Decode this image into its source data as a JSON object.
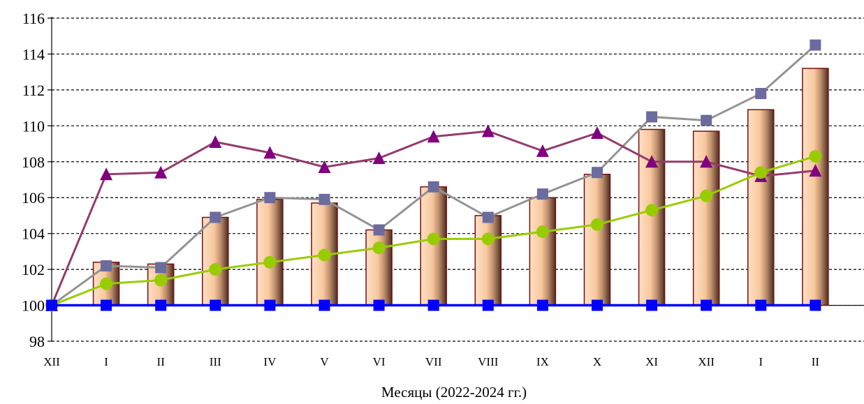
{
  "chart_data": {
    "type": "bar",
    "title": "",
    "xlabel": "Месяцы (2022-2024 гг.)",
    "ylabel": "",
    "categories": [
      "XII",
      "I",
      "II",
      "III",
      "IV",
      "V",
      "VI",
      "VII",
      "VIII",
      "IX",
      "X",
      "XI",
      "XII",
      "I",
      "II"
    ],
    "ylim": [
      98,
      116
    ],
    "yticks": [
      98,
      100,
      102,
      104,
      106,
      108,
      110,
      112,
      114,
      116
    ],
    "grid": true,
    "series": [
      {
        "type": "bar",
        "color": "#f8c89e",
        "values": [
          null,
          102.4,
          102.3,
          104.9,
          105.9,
          105.7,
          104.2,
          106.6,
          105.0,
          106.0,
          107.3,
          109.8,
          109.7,
          110.9,
          113.2
        ]
      },
      {
        "type": "line",
        "color": "#939393",
        "marker": "square",
        "marker_color": "#6b6b9e",
        "values": [
          100.0,
          102.2,
          102.1,
          104.9,
          106.0,
          105.9,
          104.2,
          106.6,
          104.9,
          106.2,
          107.4,
          110.5,
          110.3,
          111.8,
          114.5
        ]
      },
      {
        "type": "line",
        "color": "#953a6c",
        "marker": "triangle",
        "marker_color": "#800080",
        "values": [
          100.0,
          107.3,
          107.4,
          109.1,
          108.5,
          107.7,
          108.2,
          109.4,
          109.7,
          108.6,
          109.6,
          108.0,
          108.0,
          107.2,
          107.5
        ]
      },
      {
        "type": "line",
        "color": "#99cc00",
        "marker": "circle",
        "marker_color": "#99cc00",
        "values": [
          100.0,
          101.2,
          101.4,
          102.0,
          102.4,
          102.8,
          103.2,
          103.7,
          103.7,
          104.1,
          104.5,
          105.3,
          106.1,
          107.4,
          108.3
        ]
      },
      {
        "type": "line",
        "color": "#0000ff",
        "marker": "square",
        "marker_color": "#0000ff",
        "values": [
          100,
          100,
          100,
          100,
          100,
          100,
          100,
          100,
          100,
          100,
          100,
          100,
          100,
          100,
          100
        ]
      }
    ]
  }
}
